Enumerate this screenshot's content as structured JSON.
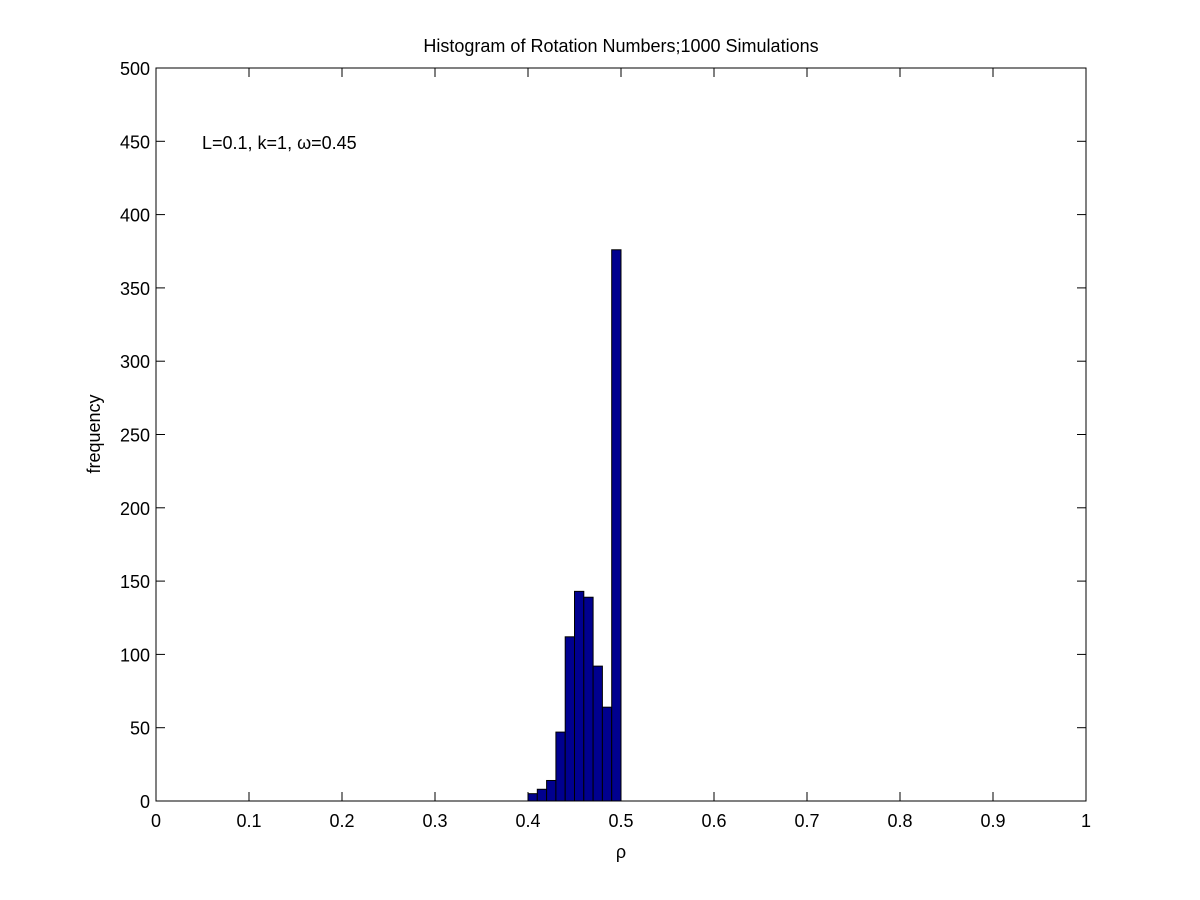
{
  "chart_data": {
    "type": "bar",
    "title": "Histogram of Rotation Numbers;1000 Simulations",
    "xlabel": "ρ",
    "ylabel": "frequency",
    "annotation": "L=0.1, k=1, ω=0.45",
    "xlim": [
      0,
      1
    ],
    "ylim": [
      0,
      500
    ],
    "xticks": [
      0,
      0.1,
      0.2,
      0.3,
      0.4,
      0.5,
      0.6,
      0.7,
      0.8,
      0.9,
      1
    ],
    "xtick_labels": [
      "0",
      "0.1",
      "0.2",
      "0.3",
      "0.4",
      "0.5",
      "0.6",
      "0.7",
      "0.8",
      "0.9",
      "1"
    ],
    "yticks": [
      0,
      50,
      100,
      150,
      200,
      250,
      300,
      350,
      400,
      450,
      500
    ],
    "ytick_labels": [
      "0",
      "50",
      "100",
      "150",
      "200",
      "250",
      "300",
      "350",
      "400",
      "450",
      "500"
    ],
    "bin_width": 0.01,
    "bins": [
      {
        "x_start": 0.4,
        "x_end": 0.41,
        "value": 5
      },
      {
        "x_start": 0.41,
        "x_end": 0.42,
        "value": 8
      },
      {
        "x_start": 0.42,
        "x_end": 0.43,
        "value": 14
      },
      {
        "x_start": 0.43,
        "x_end": 0.44,
        "value": 47
      },
      {
        "x_start": 0.44,
        "x_end": 0.45,
        "value": 112
      },
      {
        "x_start": 0.45,
        "x_end": 0.46,
        "value": 143
      },
      {
        "x_start": 0.46,
        "x_end": 0.47,
        "value": 139
      },
      {
        "x_start": 0.47,
        "x_end": 0.48,
        "value": 92
      },
      {
        "x_start": 0.48,
        "x_end": 0.49,
        "value": 64
      },
      {
        "x_start": 0.49,
        "x_end": 0.5,
        "value": 376
      }
    ],
    "bar_color": "#00008F",
    "bar_edge_color": "#000000",
    "grid": false,
    "box": true
  }
}
